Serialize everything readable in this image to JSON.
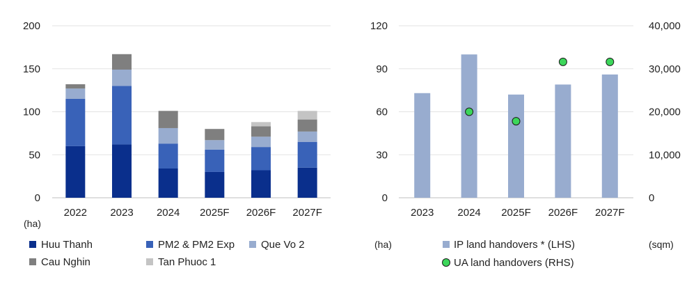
{
  "chart_data": [
    {
      "type": "bar",
      "stacked": true,
      "categories": [
        "2022",
        "2023",
        "2024",
        "2025F",
        "2026F",
        "2027F"
      ],
      "series": [
        {
          "name": "Huu Thanh",
          "color": "#0a2f8c",
          "values": [
            60,
            62,
            34,
            30,
            32,
            35
          ]
        },
        {
          "name": "PM2 & PM2 Exp",
          "color": "#3962b8",
          "values": [
            55,
            68,
            29,
            26,
            27,
            30
          ]
        },
        {
          "name": "Que Vo 2",
          "color": "#98accf",
          "values": [
            12,
            19,
            18,
            11,
            12,
            12
          ]
        },
        {
          "name": "Cau Nghin",
          "color": "#7f7f7f",
          "values": [
            5,
            18,
            20,
            13,
            12,
            14
          ]
        },
        {
          "name": "Tan Phuoc 1",
          "color": "#c4c4c4",
          "values": [
            0,
            0,
            0,
            0,
            5,
            10
          ]
        }
      ],
      "y_ticks": [
        "0",
        "50",
        "100",
        "150",
        "200"
      ],
      "ylim": [
        0,
        200
      ],
      "ylabel": "(ha)",
      "legend_position": "bottom",
      "grid": true
    },
    {
      "type": "bar+scatter",
      "categories": [
        "2023",
        "2024",
        "2025F",
        "2026F",
        "2027F"
      ],
      "series": [
        {
          "name": "IP land handovers * (LHS)",
          "type": "bar",
          "axis": "left",
          "color": "#98accf",
          "values": [
            73,
            100,
            72,
            79,
            86
          ]
        },
        {
          "name": "UA land handovers (RHS)",
          "type": "scatter",
          "axis": "right",
          "color": "#3cd65a",
          "values": [
            null,
            20000,
            17800,
            31600,
            31600
          ]
        }
      ],
      "y_left_ticks": [
        "0",
        "30",
        "60",
        "90",
        "120"
      ],
      "y_left_lim": [
        0,
        120
      ],
      "y_right_ticks": [
        "0",
        "10,000",
        "20,000",
        "30,000",
        "40,000"
      ],
      "y_right_lim": [
        0,
        40000
      ],
      "ylabel_left": "(ha)",
      "ylabel_right": "(sqm)",
      "legend_position": "bottom",
      "grid": true
    }
  ]
}
